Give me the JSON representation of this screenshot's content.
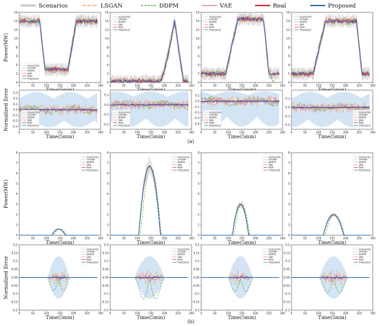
{
  "legend": {
    "items": [
      {
        "name": "Scenarios",
        "color": "#c8c8c8",
        "dash": "solid",
        "width": 3
      },
      {
        "name": "LSGAN",
        "color": "#f4a259",
        "dash": "dashdot",
        "width": 1.5
      },
      {
        "name": "DDPM",
        "color": "#5aa845",
        "dash": "dashed",
        "width": 1.5
      },
      {
        "name": "VAE",
        "color": "#e589a8",
        "dash": "solid",
        "width": 1.5
      },
      {
        "name": "Real",
        "color": "#d7263d",
        "dash": "solid",
        "width": 2
      },
      {
        "name": "Proposed",
        "color": "#2f6fb0",
        "dash": "solid",
        "width": 2
      }
    ]
  },
  "labels": {
    "xlabel": "Time(5min)",
    "ylabel_power": "Power(MW)",
    "ylabel_error": "Normalized Error",
    "panel_a": "(a)",
    "panel_b": "(b)"
  },
  "chart_data": [
    {
      "group": "a-power",
      "type": "line",
      "xlim": [
        0,
        300
      ],
      "xticks": [
        0,
        50,
        100,
        150,
        200,
        250,
        300
      ],
      "panels": [
        {
          "ylim": [
            0,
            16
          ],
          "yticks": [
            0,
            2,
            4,
            6,
            8,
            10,
            12,
            14,
            16
          ],
          "profile": "U",
          "high": 14,
          "low": 3,
          "valley": [
            95,
            180
          ],
          "legend": "lower-left"
        },
        {
          "ylim": [
            0,
            16
          ],
          "yticks": [
            0,
            2,
            4,
            6,
            8,
            10,
            12,
            14,
            16
          ],
          "profile": "peak",
          "high": 14,
          "low": 0.3,
          "on": [
            185,
            270
          ],
          "legend": "upper-left"
        },
        {
          "ylim": [
            0,
            16
          ],
          "yticks": [
            0,
            2,
            4,
            6,
            8,
            10,
            12,
            14,
            16
          ],
          "profile": "step",
          "high": 14.5,
          "low": 2,
          "on": [
            120,
            230
          ],
          "legend": "upper-left"
        },
        {
          "ylim": [
            0,
            16
          ],
          "yticks": [
            0,
            2,
            4,
            6,
            8,
            10,
            12,
            14,
            16
          ],
          "profile": "step",
          "high": 14,
          "low": 2,
          "on": [
            110,
            240
          ],
          "legend": "upper-left"
        }
      ]
    },
    {
      "group": "a-error",
      "type": "line",
      "xlim": [
        0,
        300
      ],
      "xticks": [
        0,
        50,
        100,
        150,
        200,
        250,
        300
      ],
      "panels": [
        {
          "ylim": [
            -0.35,
            0.35
          ],
          "yticks": [
            -0.3,
            -0.2,
            -0.1,
            0.0,
            0.1,
            0.2,
            0.3
          ],
          "legend": "lower-left"
        },
        {
          "ylim": [
            -0.25,
            0.15
          ],
          "yticks": [
            -0.2,
            -0.1,
            0.0,
            0.1
          ],
          "legend": "lower-left"
        },
        {
          "ylim": [
            -0.5,
            0.2
          ],
          "yticks": [
            -0.4,
            -0.3,
            -0.2,
            -0.1,
            0.0,
            0.1
          ],
          "legend": "lower-left"
        },
        {
          "ylim": [
            -0.25,
            0.2
          ],
          "yticks": [
            -0.2,
            -0.1,
            0.0,
            0.1
          ],
          "legend": "lower-right"
        }
      ]
    },
    {
      "group": "b-power",
      "type": "line",
      "xlim": [
        0,
        300
      ],
      "xticks": [
        0,
        50,
        100,
        150,
        200,
        250,
        300
      ],
      "panels": [
        {
          "ylim": [
            0,
            8
          ],
          "yticks": [
            0,
            1,
            2,
            3,
            4,
            5,
            6,
            7,
            8
          ],
          "peak": 0.6,
          "center": 145,
          "width": 50,
          "legend": "upper-right"
        },
        {
          "ylim": [
            0,
            8
          ],
          "yticks": [
            0,
            1,
            2,
            3,
            4,
            5,
            6,
            7,
            8
          ],
          "peak": 6.7,
          "center": 145,
          "width": 80,
          "legend": "upper-right"
        },
        {
          "ylim": [
            0,
            8
          ],
          "yticks": [
            0,
            1,
            2,
            3,
            4,
            5,
            6,
            7,
            8
          ],
          "peak": 3.0,
          "center": 145,
          "width": 60,
          "legend": "upper-right"
        },
        {
          "ylim": [
            0,
            8
          ],
          "yticks": [
            0,
            1,
            2,
            3,
            4,
            5,
            6,
            7,
            8
          ],
          "peak": 2.0,
          "center": 155,
          "width": 75,
          "legend": "upper-right"
        }
      ]
    },
    {
      "group": "b-error",
      "type": "line",
      "xlim": [
        0,
        300
      ],
      "xticks": [
        0,
        50,
        100,
        150,
        200,
        250,
        300
      ],
      "panels": [
        {
          "ylim": [
            -0.2,
            0.2
          ],
          "yticks": [
            -0.2,
            -0.15,
            -0.1,
            -0.05,
            0.0,
            0.05,
            0.1,
            0.15,
            0.2
          ],
          "legend": "upper-right"
        },
        {
          "ylim": [
            -0.2,
            0.2
          ],
          "yticks": [
            -0.2,
            -0.15,
            -0.1,
            -0.05,
            0.0,
            0.05,
            0.1,
            0.15,
            0.2
          ],
          "legend": "upper-right"
        },
        {
          "ylim": [
            -0.2,
            0.2
          ],
          "yticks": [
            -0.2,
            -0.15,
            -0.1,
            -0.05,
            0.0,
            0.05,
            0.1,
            0.15,
            0.2
          ],
          "legend": "upper-right"
        },
        {
          "ylim": [
            -0.2,
            0.2
          ],
          "yticks": [
            -0.2,
            -0.15,
            -0.1,
            -0.05,
            0.0,
            0.05,
            0.1,
            0.15,
            0.2
          ],
          "legend": "upper-right"
        }
      ]
    }
  ]
}
